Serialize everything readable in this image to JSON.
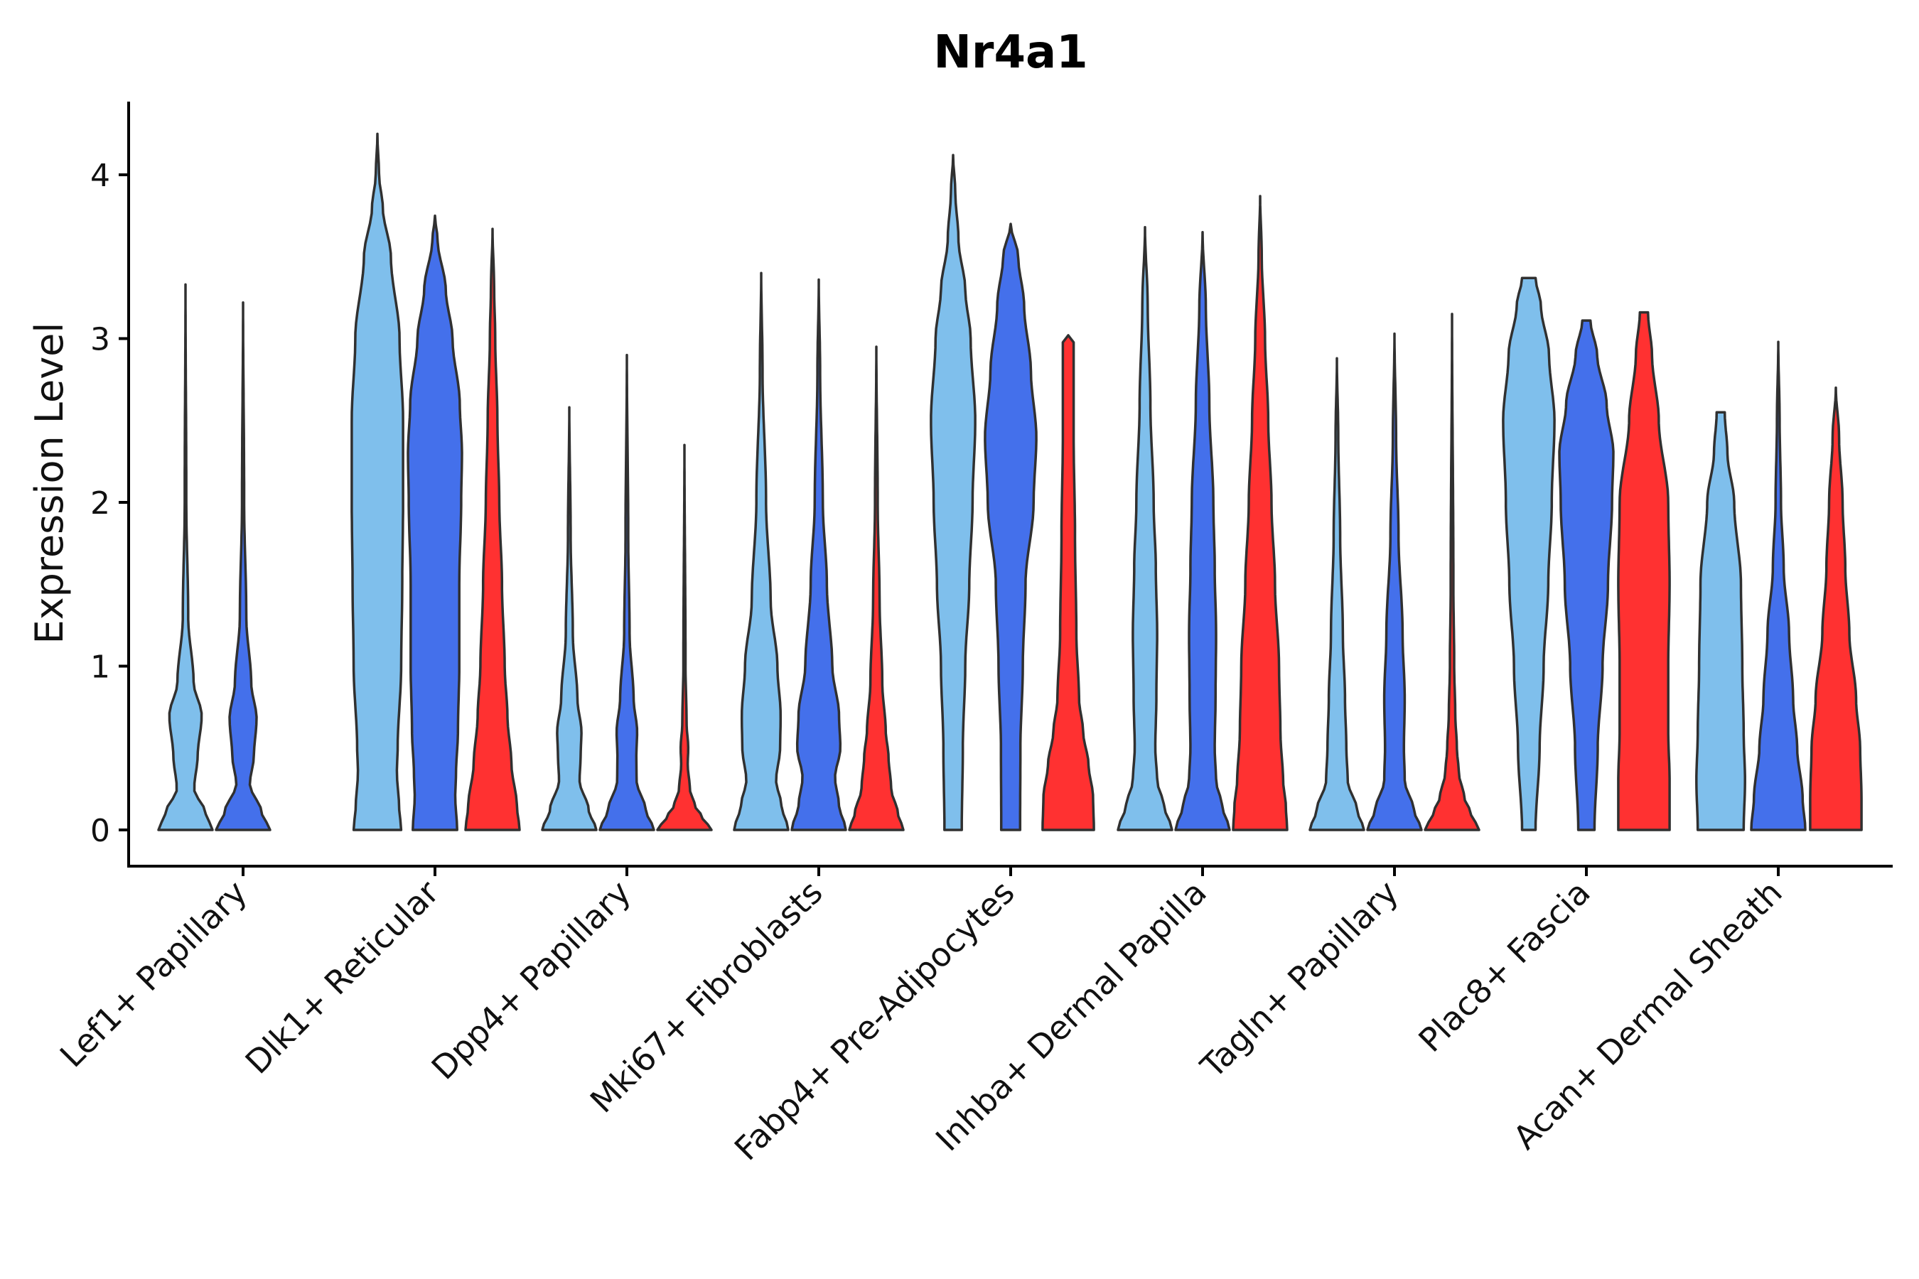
{
  "chart_data": {
    "type": "violin",
    "title": "Nr4a1",
    "xlabel": "",
    "ylabel": "Expression Level",
    "ylim": [
      -0.22,
      4.5
    ],
    "yticks": [
      0,
      1,
      2,
      3,
      4
    ],
    "grid": false,
    "legend": "none",
    "categories": [
      "Lef1+ Papillary",
      "Dlk1+ Reticular",
      "Dpp4+ Papillary",
      "Mki67+ Fibroblasts",
      "Fabp4+ Pre-Adipocytes",
      "Inhba+ Dermal Papilla",
      "Tagln+ Papillary",
      "Plac8+ Fascia",
      "Acan+ Dermal Sheath"
    ],
    "series_colors": [
      "#7FBFEC",
      "#4470EB",
      "#FF3131"
    ],
    "violins": [
      {
        "category": 0,
        "series": 0,
        "max": 3.33,
        "profile": [
          [
            0,
            1
          ],
          [
            0.1,
            0.75
          ],
          [
            0.25,
            0.32
          ],
          [
            0.45,
            0.45
          ],
          [
            0.7,
            0.6
          ],
          [
            0.9,
            0.3
          ],
          [
            1.3,
            0.1
          ],
          [
            2.0,
            0.03
          ],
          [
            3.33,
            0
          ]
        ]
      },
      {
        "category": 0,
        "series": 1,
        "max": 3.22,
        "profile": [
          [
            0,
            1
          ],
          [
            0.1,
            0.7
          ],
          [
            0.28,
            0.25
          ],
          [
            0.45,
            0.4
          ],
          [
            0.68,
            0.5
          ],
          [
            0.9,
            0.3
          ],
          [
            1.3,
            0.12
          ],
          [
            2.0,
            0.04
          ],
          [
            3.22,
            0
          ]
        ]
      },
      {
        "category": 1,
        "series": 0,
        "max": 4.25,
        "profile": [
          [
            0,
            0.88
          ],
          [
            0.15,
            0.8
          ],
          [
            0.35,
            0.72
          ],
          [
            0.5,
            0.75
          ],
          [
            1.0,
            0.88
          ],
          [
            1.5,
            0.92
          ],
          [
            2.0,
            0.95
          ],
          [
            2.5,
            0.95
          ],
          [
            3.0,
            0.82
          ],
          [
            3.5,
            0.5
          ],
          [
            3.8,
            0.2
          ],
          [
            4.0,
            0.06
          ],
          [
            4.25,
            0
          ]
        ]
      },
      {
        "category": 1,
        "series": 1,
        "max": 3.75,
        "profile": [
          [
            0,
            0.82
          ],
          [
            0.2,
            0.75
          ],
          [
            0.35,
            0.78
          ],
          [
            0.6,
            0.85
          ],
          [
            1.0,
            0.9
          ],
          [
            1.5,
            0.9
          ],
          [
            2.0,
            0.97
          ],
          [
            2.3,
            1.0
          ],
          [
            2.6,
            0.92
          ],
          [
            3.0,
            0.65
          ],
          [
            3.3,
            0.4
          ],
          [
            3.6,
            0.1
          ],
          [
            3.75,
            0
          ]
        ]
      },
      {
        "category": 1,
        "series": 2,
        "max": 3.67,
        "profile": [
          [
            0,
            1
          ],
          [
            0.15,
            0.9
          ],
          [
            0.4,
            0.7
          ],
          [
            0.7,
            0.55
          ],
          [
            1.0,
            0.45
          ],
          [
            1.5,
            0.35
          ],
          [
            2.0,
            0.25
          ],
          [
            2.5,
            0.18
          ],
          [
            3.0,
            0.1
          ],
          [
            3.3,
            0.06
          ],
          [
            3.67,
            0
          ]
        ]
      },
      {
        "category": 2,
        "series": 0,
        "max": 2.58,
        "profile": [
          [
            0,
            1
          ],
          [
            0.12,
            0.72
          ],
          [
            0.3,
            0.38
          ],
          [
            0.45,
            0.42
          ],
          [
            0.6,
            0.45
          ],
          [
            0.8,
            0.3
          ],
          [
            1.2,
            0.13
          ],
          [
            1.8,
            0.05
          ],
          [
            2.58,
            0
          ]
        ]
      },
      {
        "category": 2,
        "series": 1,
        "max": 2.9,
        "profile": [
          [
            0,
            1
          ],
          [
            0.12,
            0.7
          ],
          [
            0.3,
            0.36
          ],
          [
            0.45,
            0.35
          ],
          [
            0.6,
            0.38
          ],
          [
            0.8,
            0.25
          ],
          [
            1.2,
            0.1
          ],
          [
            1.8,
            0.05
          ],
          [
            2.9,
            0
          ]
        ]
      },
      {
        "category": 2,
        "series": 2,
        "max": 2.35,
        "profile": [
          [
            0,
            1
          ],
          [
            0.08,
            0.65
          ],
          [
            0.15,
            0.38
          ],
          [
            0.25,
            0.2
          ],
          [
            0.4,
            0.12
          ],
          [
            0.5,
            0.14
          ],
          [
            0.65,
            0.08
          ],
          [
            1.0,
            0.04
          ],
          [
            2.35,
            0
          ]
        ]
      },
      {
        "category": 3,
        "series": 0,
        "max": 3.4,
        "profile": [
          [
            0,
            1
          ],
          [
            0.15,
            0.75
          ],
          [
            0.3,
            0.55
          ],
          [
            0.5,
            0.7
          ],
          [
            0.7,
            0.72
          ],
          [
            1.0,
            0.6
          ],
          [
            1.4,
            0.35
          ],
          [
            2.0,
            0.18
          ],
          [
            2.8,
            0.05
          ],
          [
            3.4,
            0
          ]
        ]
      },
      {
        "category": 3,
        "series": 1,
        "max": 3.36,
        "profile": [
          [
            0,
            1
          ],
          [
            0.15,
            0.75
          ],
          [
            0.32,
            0.6
          ],
          [
            0.5,
            0.8
          ],
          [
            0.7,
            0.75
          ],
          [
            1.0,
            0.5
          ],
          [
            1.5,
            0.3
          ],
          [
            2.0,
            0.15
          ],
          [
            2.8,
            0.05
          ],
          [
            3.36,
            0
          ]
        ]
      },
      {
        "category": 3,
        "series": 2,
        "max": 2.95,
        "profile": [
          [
            0,
            1
          ],
          [
            0.1,
            0.8
          ],
          [
            0.25,
            0.55
          ],
          [
            0.45,
            0.45
          ],
          [
            0.6,
            0.35
          ],
          [
            0.9,
            0.22
          ],
          [
            1.4,
            0.12
          ],
          [
            2.0,
            0.05
          ],
          [
            2.95,
            0
          ]
        ]
      },
      {
        "category": 4,
        "series": 0,
        "max": 4.12,
        "profile": [
          [
            0,
            0.32
          ],
          [
            0.5,
            0.36
          ],
          [
            1.0,
            0.45
          ],
          [
            1.5,
            0.6
          ],
          [
            2.0,
            0.72
          ],
          [
            2.5,
            0.82
          ],
          [
            3.0,
            0.65
          ],
          [
            3.3,
            0.45
          ],
          [
            3.6,
            0.2
          ],
          [
            3.9,
            0.08
          ],
          [
            4.12,
            0
          ]
        ]
      },
      {
        "category": 4,
        "series": 1,
        "max": 3.7,
        "profile": [
          [
            0,
            0.35
          ],
          [
            0.5,
            0.36
          ],
          [
            1.0,
            0.45
          ],
          [
            1.5,
            0.55
          ],
          [
            2.0,
            0.85
          ],
          [
            2.4,
            0.95
          ],
          [
            2.8,
            0.75
          ],
          [
            3.2,
            0.5
          ],
          [
            3.5,
            0.28
          ],
          [
            3.7,
            0
          ]
        ]
      },
      {
        "category": 4,
        "series": 2,
        "max": 3.02,
        "profile": [
          [
            0,
            0.95
          ],
          [
            0.2,
            0.92
          ],
          [
            0.4,
            0.75
          ],
          [
            0.6,
            0.55
          ],
          [
            0.8,
            0.4
          ],
          [
            1.2,
            0.3
          ],
          [
            1.8,
            0.25
          ],
          [
            2.4,
            0.2
          ],
          [
            3.0,
            0.2
          ],
          [
            3.02,
            0
          ]
        ]
      },
      {
        "category": 5,
        "series": 0,
        "max": 3.68,
        "profile": [
          [
            0,
            1
          ],
          [
            0.15,
            0.7
          ],
          [
            0.3,
            0.45
          ],
          [
            0.5,
            0.38
          ],
          [
            0.8,
            0.42
          ],
          [
            1.2,
            0.45
          ],
          [
            1.6,
            0.4
          ],
          [
            2.0,
            0.32
          ],
          [
            2.6,
            0.2
          ],
          [
            3.2,
            0.1
          ],
          [
            3.68,
            0
          ]
        ]
      },
      {
        "category": 5,
        "series": 1,
        "max": 3.65,
        "profile": [
          [
            0,
            1
          ],
          [
            0.15,
            0.72
          ],
          [
            0.3,
            0.5
          ],
          [
            0.5,
            0.45
          ],
          [
            0.8,
            0.48
          ],
          [
            1.2,
            0.5
          ],
          [
            1.6,
            0.45
          ],
          [
            2.0,
            0.4
          ],
          [
            2.6,
            0.25
          ],
          [
            3.2,
            0.12
          ],
          [
            3.65,
            0
          ]
        ]
      },
      {
        "category": 5,
        "series": 2,
        "max": 3.87,
        "profile": [
          [
            0,
            1
          ],
          [
            0.15,
            0.95
          ],
          [
            0.3,
            0.85
          ],
          [
            0.6,
            0.75
          ],
          [
            1.0,
            0.7
          ],
          [
            1.5,
            0.55
          ],
          [
            2.0,
            0.42
          ],
          [
            2.5,
            0.3
          ],
          [
            3.0,
            0.18
          ],
          [
            3.5,
            0.06
          ],
          [
            3.87,
            0
          ]
        ]
      },
      {
        "category": 6,
        "series": 0,
        "max": 2.88,
        "profile": [
          [
            0,
            1
          ],
          [
            0.12,
            0.75
          ],
          [
            0.3,
            0.4
          ],
          [
            0.5,
            0.35
          ],
          [
            0.8,
            0.3
          ],
          [
            1.2,
            0.22
          ],
          [
            1.8,
            0.12
          ],
          [
            2.4,
            0.05
          ],
          [
            2.88,
            0
          ]
        ]
      },
      {
        "category": 6,
        "series": 1,
        "max": 3.03,
        "profile": [
          [
            0,
            1
          ],
          [
            0.12,
            0.72
          ],
          [
            0.3,
            0.38
          ],
          [
            0.5,
            0.35
          ],
          [
            0.8,
            0.38
          ],
          [
            1.2,
            0.3
          ],
          [
            1.8,
            0.15
          ],
          [
            2.4,
            0.06
          ],
          [
            3.03,
            0
          ]
        ]
      },
      {
        "category": 6,
        "series": 2,
        "max": 3.15,
        "profile": [
          [
            0,
            1
          ],
          [
            0.1,
            0.7
          ],
          [
            0.2,
            0.45
          ],
          [
            0.35,
            0.25
          ],
          [
            0.5,
            0.18
          ],
          [
            0.7,
            0.12
          ],
          [
            1.0,
            0.08
          ],
          [
            1.5,
            0.05
          ],
          [
            3.15,
            0
          ]
        ]
      },
      {
        "category": 7,
        "series": 0,
        "max": 3.37,
        "profile": [
          [
            0,
            0.25
          ],
          [
            0.5,
            0.4
          ],
          [
            1.0,
            0.55
          ],
          [
            1.5,
            0.72
          ],
          [
            2.0,
            0.85
          ],
          [
            2.5,
            0.95
          ],
          [
            2.9,
            0.75
          ],
          [
            3.2,
            0.45
          ],
          [
            3.37,
            0.25
          ],
          [
            3.371,
            0
          ]
        ]
      },
      {
        "category": 7,
        "series": 1,
        "max": 3.11,
        "profile": [
          [
            0,
            0.3
          ],
          [
            0.5,
            0.42
          ],
          [
            1.0,
            0.6
          ],
          [
            1.5,
            0.8
          ],
          [
            2.0,
            0.95
          ],
          [
            2.3,
            1.0
          ],
          [
            2.6,
            0.75
          ],
          [
            2.9,
            0.4
          ],
          [
            3.11,
            0.15
          ],
          [
            3.111,
            0
          ]
        ]
      },
      {
        "category": 7,
        "series": 2,
        "max": 3.16,
        "profile": [
          [
            0,
            0.95
          ],
          [
            0.3,
            0.95
          ],
          [
            0.6,
            0.9
          ],
          [
            1.0,
            0.9
          ],
          [
            1.5,
            0.95
          ],
          [
            2.0,
            0.9
          ],
          [
            2.5,
            0.55
          ],
          [
            2.9,
            0.3
          ],
          [
            3.16,
            0.15
          ],
          [
            3.161,
            0
          ]
        ]
      },
      {
        "category": 8,
        "series": 0,
        "max": 2.55,
        "profile": [
          [
            0,
            0.85
          ],
          [
            0.3,
            0.9
          ],
          [
            0.6,
            0.85
          ],
          [
            1.0,
            0.8
          ],
          [
            1.5,
            0.75
          ],
          [
            2.0,
            0.5
          ],
          [
            2.3,
            0.25
          ],
          [
            2.55,
            0.15
          ],
          [
            2.551,
            0
          ]
        ]
      },
      {
        "category": 8,
        "series": 1,
        "max": 2.98,
        "profile": [
          [
            0,
            1
          ],
          [
            0.2,
            0.9
          ],
          [
            0.5,
            0.7
          ],
          [
            0.8,
            0.55
          ],
          [
            1.2,
            0.4
          ],
          [
            1.6,
            0.2
          ],
          [
            2.0,
            0.1
          ],
          [
            2.5,
            0.05
          ],
          [
            2.98,
            0
          ]
        ]
      },
      {
        "category": 8,
        "series": 2,
        "max": 2.7,
        "profile": [
          [
            0,
            0.95
          ],
          [
            0.2,
            0.95
          ],
          [
            0.5,
            0.9
          ],
          [
            0.8,
            0.75
          ],
          [
            1.2,
            0.5
          ],
          [
            1.6,
            0.35
          ],
          [
            2.0,
            0.25
          ],
          [
            2.4,
            0.12
          ],
          [
            2.7,
            0
          ]
        ]
      }
    ]
  }
}
